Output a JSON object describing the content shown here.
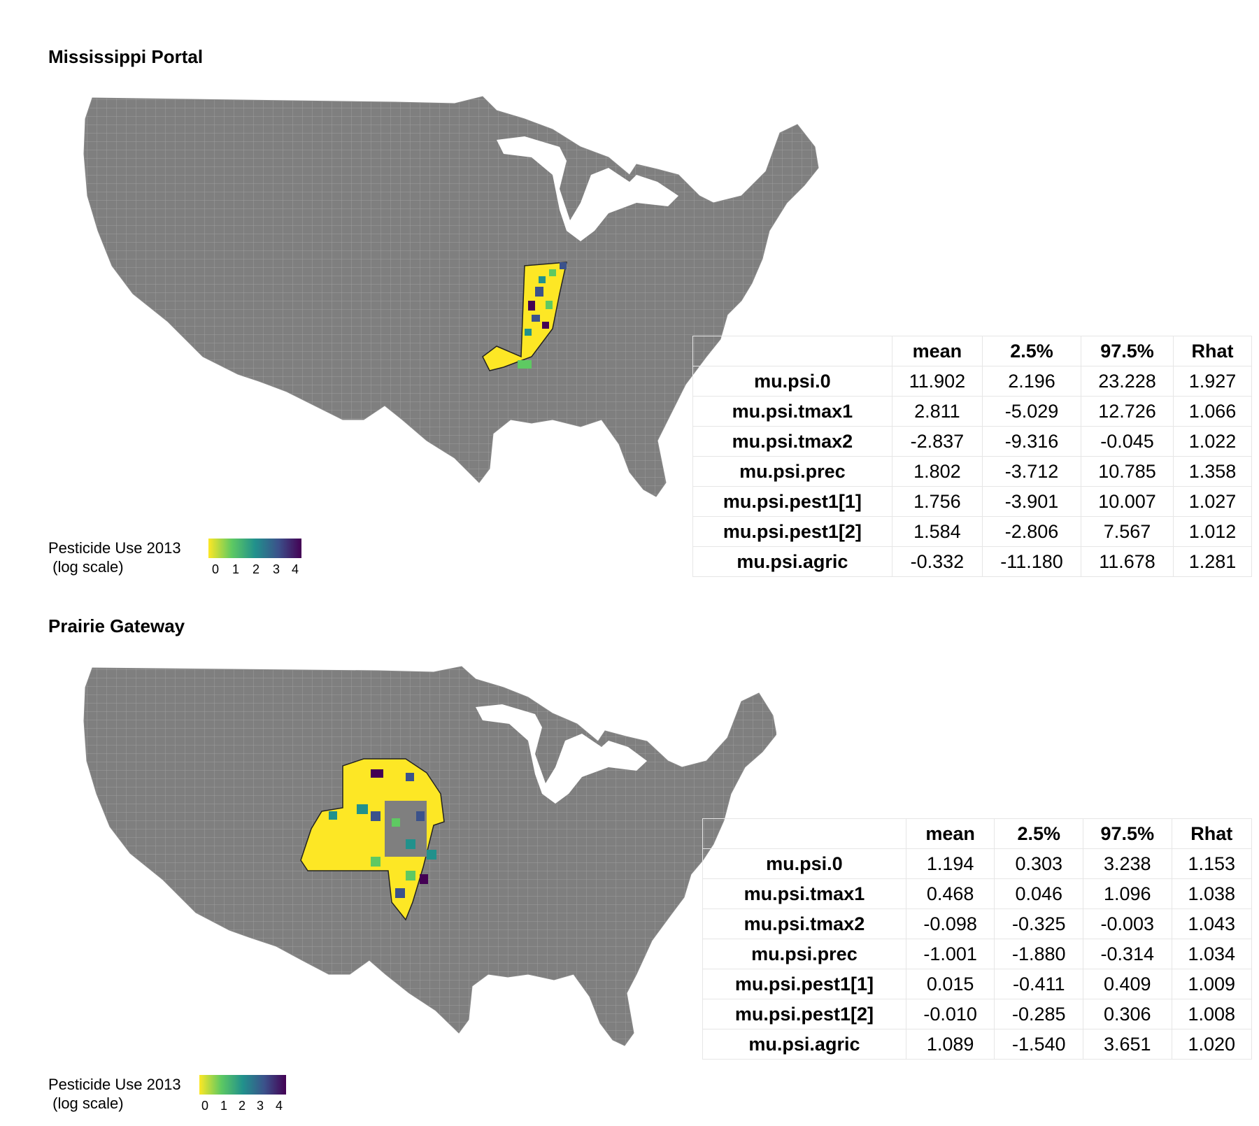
{
  "panels": [
    {
      "title": "Mississippi Portal",
      "legend": {
        "title": "Pesticide Use 2013\n (log scale)",
        "ticks": [
          "0",
          "1",
          "2",
          "3",
          "4"
        ]
      },
      "table": {
        "headers": [
          "",
          "mean",
          "2.5%",
          "97.5%",
          "Rhat"
        ],
        "rows": [
          [
            "mu.psi.0",
            "11.902",
            "2.196",
            "23.228",
            "1.927"
          ],
          [
            "mu.psi.tmax1",
            "2.811",
            "-5.029",
            "12.726",
            "1.066"
          ],
          [
            "mu.psi.tmax2",
            "-2.837",
            "-9.316",
            "-0.045",
            "1.022"
          ],
          [
            "mu.psi.prec",
            "1.802",
            "-3.712",
            "10.785",
            "1.358"
          ],
          [
            "mu.psi.pest1[1]",
            "1.756",
            "-3.901",
            "10.007",
            "1.027"
          ],
          [
            "mu.psi.pest1[2]",
            "1.584",
            "-2.806",
            "7.567",
            "1.012"
          ],
          [
            "mu.psi.agric",
            "-0.332",
            "-11.180",
            "11.678",
            "1.281"
          ]
        ]
      }
    },
    {
      "title": "Prairie Gateway",
      "legend": {
        "title": "Pesticide Use 2013\n (log scale)",
        "ticks": [
          "0",
          "1",
          "2",
          "3",
          "4"
        ]
      },
      "table": {
        "headers": [
          "",
          "mean",
          "2.5%",
          "97.5%",
          "Rhat"
        ],
        "rows": [
          [
            "mu.psi.0",
            "1.194",
            "0.303",
            "3.238",
            "1.153"
          ],
          [
            "mu.psi.tmax1",
            "0.468",
            "0.046",
            "1.096",
            "1.038"
          ],
          [
            "mu.psi.tmax2",
            "-0.098",
            "-0.325",
            "-0.003",
            "1.043"
          ],
          [
            "mu.psi.prec",
            "-1.001",
            "-1.880",
            "-0.314",
            "1.034"
          ],
          [
            "mu.psi.pest1[1]",
            "0.015",
            "-0.411",
            "0.409",
            "1.009"
          ],
          [
            "mu.psi.pest1[2]",
            "-0.010",
            "-0.285",
            "0.306",
            "1.008"
          ],
          [
            "mu.psi.agric",
            "1.089",
            "-1.540",
            "3.651",
            "1.020"
          ]
        ]
      }
    }
  ],
  "colors": {
    "map_fill": "#7f7f7f",
    "county_lines": "#a6a6a6",
    "viridis": [
      "#fde725",
      "#5ec962",
      "#21918c",
      "#3b528b",
      "#440154"
    ]
  }
}
